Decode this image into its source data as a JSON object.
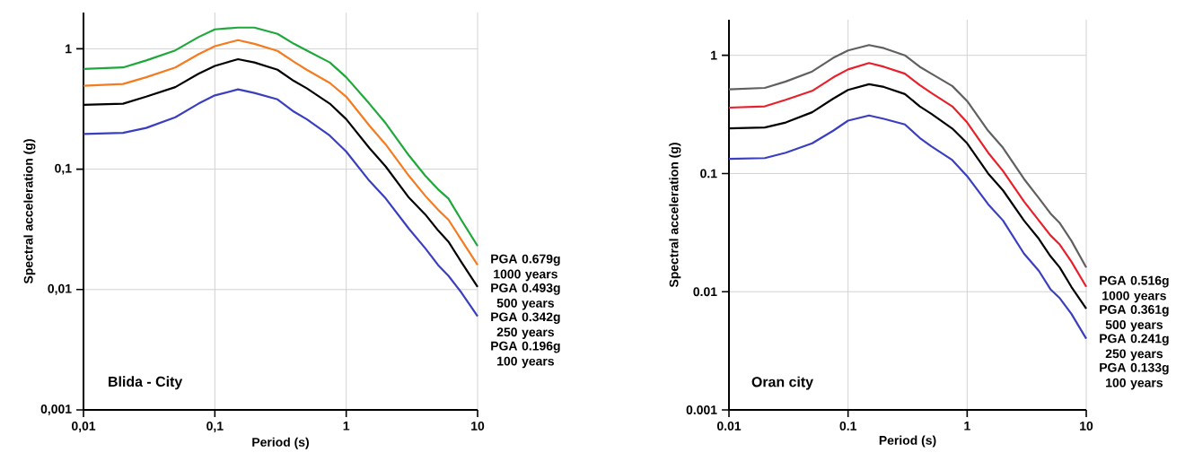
{
  "chart_data": [
    {
      "type": "line",
      "xlabel": "Period (s)",
      "ylabel": "Spectral acceleration (g)",
      "annotations": [
        "Blida - City"
      ],
      "log": "xy",
      "grid": true,
      "x": [
        0.01,
        0.02,
        0.03,
        0.05,
        0.075,
        0.1,
        0.15,
        0.2,
        0.3,
        0.4,
        0.5,
        0.75,
        1,
        1.5,
        2,
        3,
        4,
        5,
        6,
        7.5,
        10
      ],
      "xlim": [
        0.01,
        10
      ],
      "ylim": [
        0.001,
        2
      ],
      "xticks": [
        {
          "value": 0.01,
          "label": "0,01"
        },
        {
          "value": 0.1,
          "label": "0,1"
        },
        1,
        10
      ],
      "yticks": [
        {
          "value": 0.001,
          "label": "0,001"
        },
        {
          "value": 0.01,
          "label": "0,01"
        },
        {
          "value": 0.1,
          "label": "0,1"
        },
        1
      ],
      "series": [
        {
          "name": "PGA 0.679g 1000 years",
          "color": "#1fa83a",
          "values": [
            0.679,
            0.7,
            0.8,
            0.97,
            1.25,
            1.45,
            1.5,
            1.5,
            1.33,
            1.1,
            0.97,
            0.77,
            0.58,
            0.35,
            0.24,
            0.13,
            0.088,
            0.068,
            0.057,
            0.038,
            0.023
          ]
        },
        {
          "name": "PGA 0.493g 500 years",
          "color": "#f47b20",
          "values": [
            0.493,
            0.51,
            0.58,
            0.7,
            0.9,
            1.05,
            1.18,
            1.1,
            0.96,
            0.78,
            0.67,
            0.52,
            0.4,
            0.23,
            0.16,
            0.088,
            0.06,
            0.046,
            0.038,
            0.026,
            0.016
          ]
        },
        {
          "name": "PGA 0.342g 250 years",
          "color": "#000000",
          "values": [
            0.342,
            0.35,
            0.4,
            0.48,
            0.62,
            0.72,
            0.82,
            0.77,
            0.67,
            0.54,
            0.47,
            0.35,
            0.26,
            0.15,
            0.105,
            0.058,
            0.042,
            0.031,
            0.025,
            0.017,
            0.0105
          ]
        },
        {
          "name": "PGA 0.196g 100 years",
          "color": "#3a3fbf",
          "values": [
            0.196,
            0.2,
            0.22,
            0.27,
            0.35,
            0.41,
            0.46,
            0.43,
            0.38,
            0.3,
            0.26,
            0.19,
            0.14,
            0.08,
            0.057,
            0.032,
            0.022,
            0.016,
            0.013,
            0.0095,
            0.006
          ]
        }
      ]
    },
    {
      "type": "line",
      "xlabel": "Period (s)",
      "ylabel": "Spectral acceleration (g)",
      "annotations": [
        "Oran city"
      ],
      "log": "xy",
      "grid": true,
      "x": [
        0.01,
        0.02,
        0.03,
        0.05,
        0.075,
        0.1,
        0.15,
        0.2,
        0.3,
        0.4,
        0.5,
        0.75,
        1,
        1.5,
        2,
        3,
        4,
        5,
        6,
        7.5,
        10
      ],
      "xlim": [
        0.01,
        10
      ],
      "ylim": [
        0.001,
        2
      ],
      "xticks": [
        0.01,
        0.1,
        1,
        10
      ],
      "yticks": [
        0.001,
        0.01,
        0.1,
        1
      ],
      "series": [
        {
          "name": "PGA 0.516g 1000 years",
          "color": "#606060",
          "values": [
            0.516,
            0.53,
            0.6,
            0.73,
            0.95,
            1.1,
            1.22,
            1.15,
            1.0,
            0.8,
            0.7,
            0.55,
            0.41,
            0.23,
            0.165,
            0.09,
            0.062,
            0.046,
            0.038,
            0.027,
            0.016
          ]
        },
        {
          "name": "PGA 0.361g 500 years",
          "color": "#e8202a",
          "values": [
            0.361,
            0.37,
            0.42,
            0.5,
            0.65,
            0.76,
            0.86,
            0.8,
            0.7,
            0.56,
            0.48,
            0.37,
            0.27,
            0.15,
            0.105,
            0.058,
            0.04,
            0.03,
            0.025,
            0.018,
            0.011
          ]
        },
        {
          "name": "PGA 0.241g 250 years",
          "color": "#000000",
          "values": [
            0.241,
            0.245,
            0.27,
            0.33,
            0.43,
            0.51,
            0.57,
            0.54,
            0.47,
            0.37,
            0.32,
            0.24,
            0.18,
            0.1,
            0.072,
            0.04,
            0.028,
            0.02,
            0.016,
            0.011,
            0.0072
          ]
        },
        {
          "name": "PGA 0.133g 100 years",
          "color": "#3a3fbf",
          "values": [
            0.133,
            0.135,
            0.15,
            0.18,
            0.23,
            0.28,
            0.31,
            0.29,
            0.26,
            0.2,
            0.17,
            0.13,
            0.095,
            0.055,
            0.04,
            0.021,
            0.015,
            0.0105,
            0.0088,
            0.0065,
            0.004
          ]
        }
      ]
    }
  ]
}
